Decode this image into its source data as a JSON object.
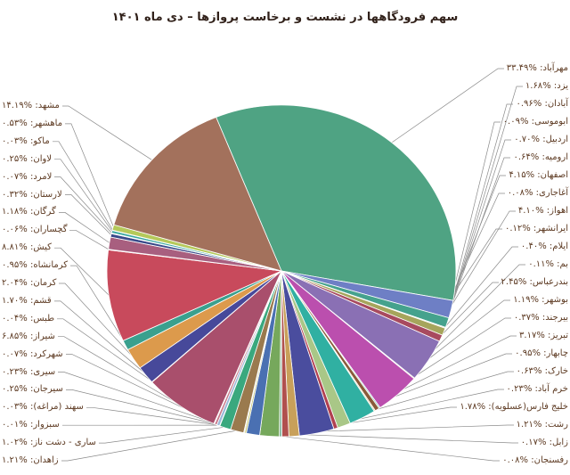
{
  "title": "سهم فرودگاهها در نشست و برخاست پروازها – دی ماه ۱۴۰۱",
  "chart_data": {
    "type": "pie",
    "title": "سهم فرودگاهها در نشست و برخاست پروازها – دی ماه ۱۴۰۱",
    "unit": "%",
    "start_angle_deg": 338,
    "direction": "clockwise",
    "legend_position": "callout labels in two side columns",
    "slices": [
      {
        "label": "مهرآباد",
        "value": 33.49,
        "display": "مهرآباد: %۳۳.۴۹",
        "color": "#4fa383",
        "side": "right",
        "row": 0
      },
      {
        "label": "یزد",
        "value": 1.68,
        "display": "یزد: %۱.۶۸",
        "color": "#6e7fc5",
        "side": "right",
        "row": 1
      },
      {
        "label": "آبادان",
        "value": 0.96,
        "display": "آبادان: %۰.۹۶",
        "color": "#45a28d",
        "side": "right",
        "row": 2
      },
      {
        "label": "ابوموسی",
        "value": 0.09,
        "display": "ابوموسی: %۰.۰۹",
        "color": "#d9d9b0",
        "side": "right",
        "row": 3
      },
      {
        "label": "اردبیل",
        "value": 0.7,
        "display": "اردبیل: %۰.۷۰",
        "color": "#a6a55c",
        "side": "right",
        "row": 4
      },
      {
        "label": "ارومیه",
        "value": 0.64,
        "display": "ارومیه: %۰.۶۴",
        "color": "#a84a5f",
        "side": "right",
        "row": 5
      },
      {
        "label": "اصفهان",
        "value": 4.15,
        "display": "اصفهان: %۴.۱۵",
        "color": "#8a70b4",
        "side": "right",
        "row": 6
      },
      {
        "label": "آغاجاری",
        "value": 0.08,
        "display": "آغاجاری: %۰.۰۸",
        "color": "#c8b888",
        "side": "right",
        "row": 7
      },
      {
        "label": "اهواز",
        "value": 4.1,
        "display": "اهواز: %۴.۱۰",
        "color": "#bb4fae",
        "side": "right",
        "row": 8
      },
      {
        "label": "ایرانشهر",
        "value": 0.12,
        "display": "ایرانشهر: %۰.۱۲",
        "color": "#7ac0b0",
        "side": "right",
        "row": 9
      },
      {
        "label": "ایلام",
        "value": 0.4,
        "display": "ایلام: %۰.۴۰",
        "color": "#8a5a3a",
        "side": "right",
        "row": 10
      },
      {
        "label": "بم",
        "value": 0.11,
        "display": "بم: %۰.۱۱",
        "color": "#d8c890",
        "side": "right",
        "row": 11
      },
      {
        "label": "بندرعباس",
        "value": 2.45,
        "display": "بندرعباس: %۲.۴۵",
        "color": "#30b0a2",
        "side": "right",
        "row": 12
      },
      {
        "label": "بوشهر",
        "value": 1.19,
        "display": "بوشهر: %۱.۱۹",
        "color": "#a9c787",
        "side": "right",
        "row": 13
      },
      {
        "label": "بیرجند",
        "value": 0.37,
        "display": "بیرجند: %۰.۳۷",
        "color": "#b04050",
        "side": "right",
        "row": 14
      },
      {
        "label": "تبریز",
        "value": 3.17,
        "display": "تبریز: %۳.۱۷",
        "color": "#4a4d9e",
        "side": "right",
        "row": 15
      },
      {
        "label": "چابهار",
        "value": 0.95,
        "display": "چابهار: %۰.۹۵",
        "color": "#c8a05a",
        "side": "right",
        "row": 16
      },
      {
        "label": "خارک",
        "value": 0.63,
        "display": "خارک: %۰.۶۳",
        "color": "#b0504e",
        "side": "right",
        "row": 17
      },
      {
        "label": "خرم آباد",
        "value": 0.23,
        "display": "خرم آباد: %۰.۲۳",
        "color": "#88b8a0",
        "side": "right",
        "row": 18
      },
      {
        "label": "خلیج فارس(عسلویه)",
        "value": 1.78,
        "display": "خلیج فارس(عسلویه): %۱.۷۸",
        "color": "#76a85c",
        "side": "right",
        "row": 19
      },
      {
        "label": "رشت",
        "value": 1.21,
        "display": "رشت: %۱.۲۱",
        "color": "#4a70b2",
        "side": "right",
        "row": 20
      },
      {
        "label": "زابل",
        "value": 0.17,
        "display": "زابل: %۰.۱۷",
        "color": "#c8c87a",
        "side": "right",
        "row": 21
      },
      {
        "label": "رفسنجان",
        "value": 0.08,
        "display": "رفسنجان: %۰.۰۸",
        "color": "#d0d0a0",
        "side": "right",
        "row": 22
      },
      {
        "label": "زاهدان",
        "value": 1.21,
        "display": "زاهدان: %۱.۲۱",
        "color": "#9a7a4e",
        "side": "left",
        "row": 20
      },
      {
        "label": "ساری - دشت ناز",
        "value": 1.02,
        "display": "ساری - دشت ناز: %۱.۰۲",
        "color": "#3aa87e",
        "side": "left",
        "row": 19
      },
      {
        "label": "سبزوار",
        "value": 0.01,
        "display": "سبزوار: %۰.۰۱",
        "color": "#e0e0c0",
        "side": "left",
        "row": 18
      },
      {
        "label": "سهند (مراغه)",
        "value": 0.03,
        "display": "سهند (مراغه): %۰.۰۳",
        "color": "#b8d0e0",
        "side": "left",
        "row": 17
      },
      {
        "label": "سیرجان",
        "value": 0.25,
        "display": "سیرجان: %۰.۲۵",
        "color": "#9ab8d8",
        "side": "left",
        "row": 16
      },
      {
        "label": "سیری",
        "value": 0.23,
        "display": "سیری: %۰.۲۳",
        "color": "#c87a8a",
        "side": "left",
        "row": 15
      },
      {
        "label": "شهرکرد",
        "value": 0.07,
        "display": "شهرکرد: %۰.۰۷",
        "color": "#d8b8c8",
        "side": "left",
        "row": 14
      },
      {
        "label": "شیراز",
        "value": 6.85,
        "display": "شیراز: %۶.۸۵",
        "color": "#a94f6c",
        "side": "left",
        "row": 13
      },
      {
        "label": "طبس",
        "value": 0.04,
        "display": "طبس: %۰.۰۴",
        "color": "#e8d8a0",
        "side": "left",
        "row": 12
      },
      {
        "label": "قشم",
        "value": 1.7,
        "display": "قشم: %۱.۷۰",
        "color": "#47499a",
        "side": "left",
        "row": 11
      },
      {
        "label": "کرمان",
        "value": 2.04,
        "display": "کرمان: %۲.۰۴",
        "color": "#dc9a4c",
        "side": "left",
        "row": 10
      },
      {
        "label": "کرمانشاه",
        "value": 0.95,
        "display": "کرمانشاه: %۰.۹۵",
        "color": "#3aa08e",
        "side": "left",
        "row": 9
      },
      {
        "label": "کیش",
        "value": 8.81,
        "display": "کیش: %۸.۸۱",
        "color": "#c84a5c",
        "side": "left",
        "row": 8
      },
      {
        "label": "گچساران",
        "value": 0.06,
        "display": "گچساران: %۰.۰۶",
        "color": "#c8c87a",
        "side": "left",
        "row": 7
      },
      {
        "label": "گرگان",
        "value": 1.18,
        "display": "گرگان: %۱.۱۸",
        "color": "#a85f7f",
        "side": "left",
        "row": 6
      },
      {
        "label": "لارستان",
        "value": 0.32,
        "display": "لارستان: %۰.۳۲",
        "color": "#3a4a8a",
        "side": "left",
        "row": 5
      },
      {
        "label": "لامرد",
        "value": 0.07,
        "display": "لامرد: %۰.۰۷",
        "color": "#8888b8",
        "side": "left",
        "row": 4
      },
      {
        "label": "لاوان",
        "value": 0.25,
        "display": "لاوان: %۰.۲۵",
        "color": "#3aa8a0",
        "side": "left",
        "row": 3
      },
      {
        "label": "ماکو",
        "value": 0.03,
        "display": "ماکو: %۰.۰۳",
        "color": "#d0d0d0",
        "side": "left",
        "row": 2
      },
      {
        "label": "ماهشهر",
        "value": 0.53,
        "display": "ماهشهر: %۰.۵۳",
        "color": "#b5c95a",
        "side": "left",
        "row": 1
      },
      {
        "label": "مشهد",
        "value": 14.19,
        "display": "مشهد: %۱۴.۱۹",
        "color": "#a3715c",
        "side": "left",
        "row": 0
      }
    ],
    "colors": {
      "label_text": "#5d3a22",
      "title_text": "#31211a",
      "leader_line": "#8a8a8a",
      "slice_border": "#ffffff"
    }
  }
}
